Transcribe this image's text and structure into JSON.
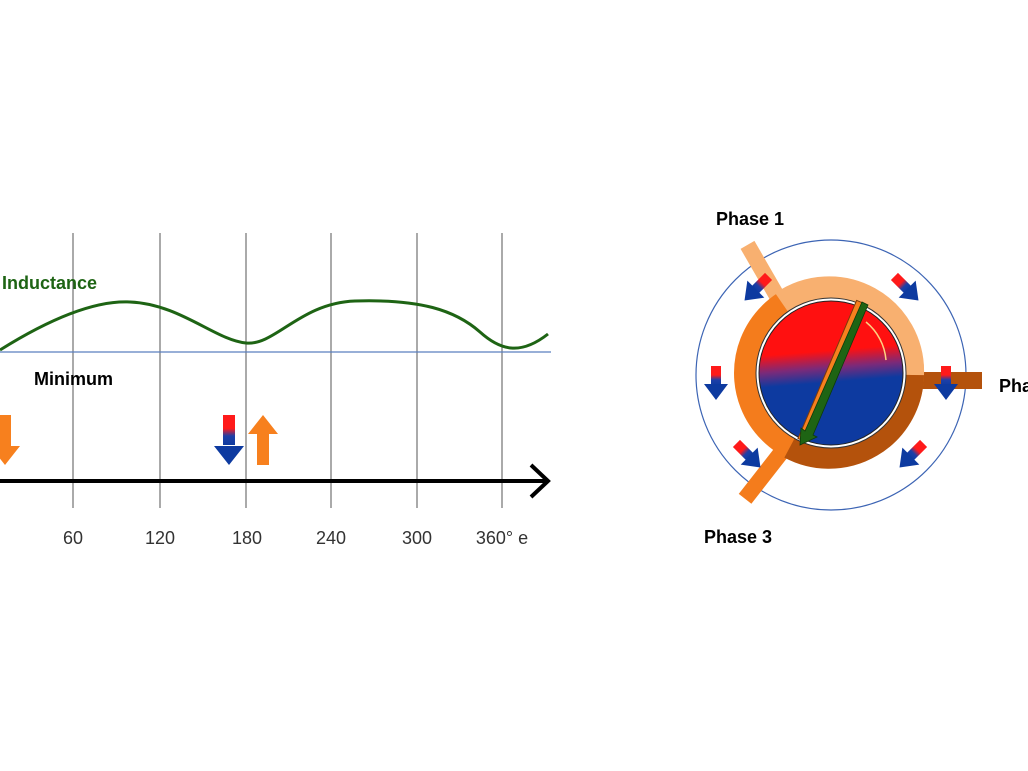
{
  "graph": {
    "curve_label": "Inductance",
    "minimum_label": "Minimum",
    "tick_labels": [
      "60",
      "120",
      "180",
      "240",
      "300",
      "360° e"
    ]
  },
  "motor": {
    "phase1_label": "Phase 1",
    "phase2_label": "Pha",
    "phase3_label": "Phase 3"
  },
  "colors": {
    "curve": "#1e6414",
    "baseline": "#5b7fbf",
    "grid": "#555555",
    "axis": "#000000",
    "arrow_orange": "#f7801e",
    "flux_red": "#ff1a1a",
    "flux_blue": "#0d3aa0",
    "stator_ring": "#f47c1c",
    "stator_dark": "#b4520c",
    "stator_light": "#f8b070",
    "rotor_pointer": "#1e6414",
    "outer_circle": "#3c64b4"
  }
}
